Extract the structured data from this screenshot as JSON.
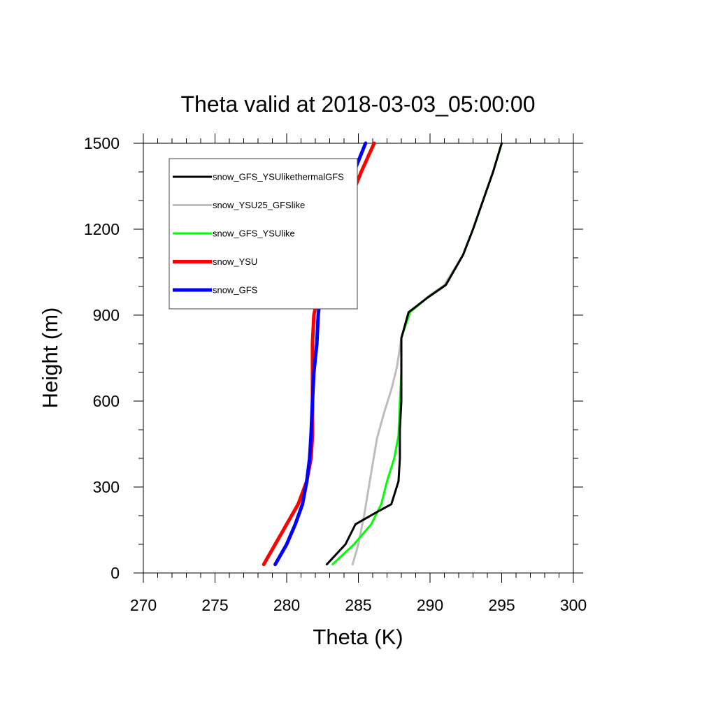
{
  "chart_data": {
    "type": "line",
    "title": "Theta valid at 2018-03-03_05:00:00",
    "xlabel": "Theta (K)",
    "ylabel": "Height (m)",
    "xlim": [
      270,
      300
    ],
    "ylim": [
      0,
      1500
    ],
    "xticks": [
      270,
      275,
      280,
      285,
      290,
      295,
      300
    ],
    "yticks": [
      0,
      300,
      600,
      900,
      1200,
      1500
    ],
    "x_minor_step": 1,
    "y_minor_step": 100,
    "grid": false,
    "legend_position": "top-left",
    "series": [
      {
        "name": "snow_GFS_YSUlikethermalGFS",
        "color": "#000000",
        "points": [
          [
            282.8,
            30
          ],
          [
            284.1,
            100
          ],
          [
            284.8,
            170
          ],
          [
            286.2,
            210
          ],
          [
            287.3,
            240
          ],
          [
            287.8,
            320
          ],
          [
            287.9,
            400
          ],
          [
            287.9,
            500
          ],
          [
            288.0,
            600
          ],
          [
            288.0,
            700
          ],
          [
            288.0,
            820
          ],
          [
            288.5,
            910
          ],
          [
            289.8,
            960
          ],
          [
            291.1,
            1005
          ],
          [
            292.3,
            1110
          ],
          [
            293.0,
            1200
          ],
          [
            293.7,
            1300
          ],
          [
            294.4,
            1400
          ],
          [
            295.0,
            1500
          ]
        ]
      },
      {
        "name": "snow_YSU25_GFSlike",
        "color": "#bdbdbd",
        "points": [
          [
            284.6,
            30
          ],
          [
            285.0,
            100
          ],
          [
            285.4,
            200
          ],
          [
            285.9,
            350
          ],
          [
            286.3,
            470
          ],
          [
            286.8,
            560
          ],
          [
            287.3,
            640
          ],
          [
            287.7,
            720
          ],
          [
            288.0,
            820
          ],
          [
            288.6,
            910
          ],
          [
            290.0,
            970
          ],
          [
            291.0,
            1005
          ],
          [
            292.3,
            1110
          ],
          [
            293.0,
            1200
          ],
          [
            293.7,
            1300
          ],
          [
            294.4,
            1400
          ],
          [
            295.0,
            1500
          ]
        ]
      },
      {
        "name": "snow_GFS_YSUlike",
        "color": "#00ff00",
        "points": [
          [
            283.2,
            30
          ],
          [
            284.7,
            100
          ],
          [
            285.9,
            170
          ],
          [
            286.6,
            240
          ],
          [
            287.0,
            320
          ],
          [
            287.5,
            400
          ],
          [
            287.8,
            480
          ],
          [
            287.9,
            600
          ],
          [
            288.0,
            700
          ],
          [
            288.0,
            820
          ],
          [
            288.6,
            910
          ],
          [
            289.8,
            960
          ],
          [
            291.1,
            1005
          ],
          [
            292.3,
            1110
          ],
          [
            293.0,
            1200
          ],
          [
            293.7,
            1300
          ],
          [
            294.4,
            1400
          ],
          [
            295.0,
            1500
          ]
        ]
      },
      {
        "name": "snow_YSU",
        "color": "#ff0000",
        "points": [
          [
            278.4,
            30
          ],
          [
            279.2,
            100
          ],
          [
            280.0,
            170
          ],
          [
            280.8,
            240
          ],
          [
            281.4,
            320
          ],
          [
            281.7,
            400
          ],
          [
            281.8,
            480
          ],
          [
            281.8,
            600
          ],
          [
            281.8,
            700
          ],
          [
            281.8,
            800
          ],
          [
            281.9,
            900
          ],
          [
            282.3,
            1000
          ],
          [
            282.8,
            1090
          ],
          [
            283.4,
            1190
          ],
          [
            284.4,
            1300
          ],
          [
            285.2,
            1400
          ],
          [
            286.1,
            1500
          ]
        ]
      },
      {
        "name": "snow_GFS",
        "color": "#0000ff",
        "points": [
          [
            279.2,
            30
          ],
          [
            280.0,
            100
          ],
          [
            280.6,
            170
          ],
          [
            281.1,
            240
          ],
          [
            281.4,
            320
          ],
          [
            281.6,
            400
          ],
          [
            281.7,
            480
          ],
          [
            281.8,
            600
          ],
          [
            281.9,
            700
          ],
          [
            282.1,
            800
          ],
          [
            282.2,
            900
          ],
          [
            282.4,
            1000
          ],
          [
            282.8,
            1100
          ],
          [
            283.3,
            1200
          ],
          [
            283.8,
            1300
          ],
          [
            284.7,
            1400
          ],
          [
            285.5,
            1500
          ]
        ]
      }
    ]
  }
}
